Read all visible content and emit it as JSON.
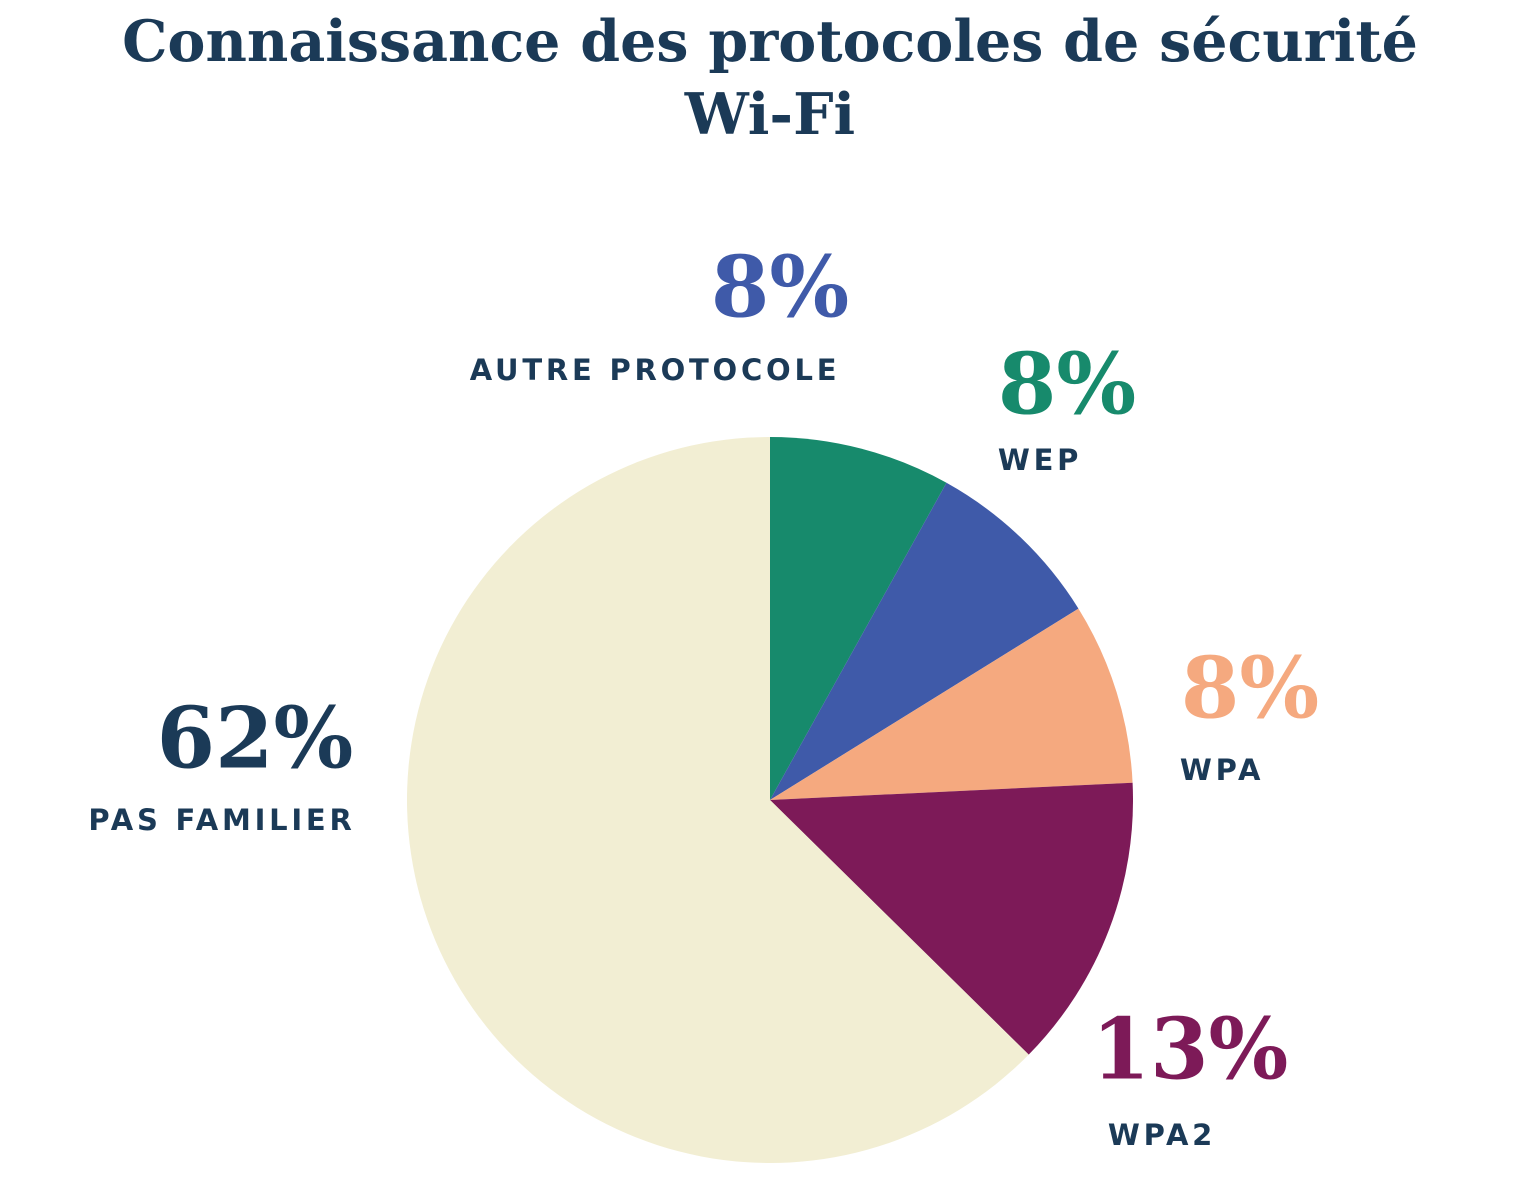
{
  "chart_data": {
    "type": "pie",
    "title": "Connaissance des protocoles de sécurité Wi-Fi",
    "title_line1": "Connaissance des protocoles de sécurité",
    "title_line2": "Wi-Fi",
    "legend": "none",
    "start_angle_deg": -90,
    "direction": "clockwise",
    "unit": "%",
    "slices": [
      {
        "id": "wep",
        "name": "WEP",
        "value": 8,
        "pct_label": "8%",
        "color": "#178a6c",
        "pct_color": "#178a6c"
      },
      {
        "id": "autre-protocole",
        "name": "AUTRE PROTOCOLE",
        "value": 8,
        "pct_label": "8%",
        "color": "#3f5aa9",
        "pct_color": "#3f5aa9"
      },
      {
        "id": "wpa",
        "name": "WPA",
        "value": 8,
        "pct_label": "8%",
        "color": "#f5a97f",
        "pct_color": "#f5a97f"
      },
      {
        "id": "wpa2",
        "name": "WPA2",
        "value": 13,
        "pct_label": "13%",
        "color": "#7d1a58",
        "pct_color": "#7d1a58"
      },
      {
        "id": "pas-familier",
        "name": "PAS FAMILIER",
        "value": 62,
        "pct_label": "62%",
        "color": "#f2eed3",
        "pct_color": "#1b3a57"
      }
    ]
  },
  "colors": {
    "title_text": "#1b3a57",
    "category_text": "#1b3a57",
    "background": "#ffffff"
  }
}
